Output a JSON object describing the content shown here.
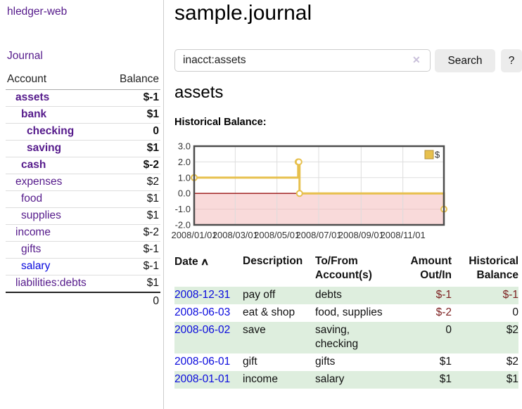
{
  "app": {
    "brand": "hledger-web"
  },
  "sidebar": {
    "journal_label": "Journal",
    "accounts": {
      "header": {
        "account": "Account",
        "balance": "Balance"
      },
      "rows": [
        {
          "name": "assets",
          "balance": "$-1",
          "indent": 0,
          "bold": true,
          "balance_class": "neg",
          "link_class": "purple"
        },
        {
          "name": "bank",
          "balance": "$1",
          "indent": 1,
          "bold": true,
          "balance_class": "",
          "link_class": "purple"
        },
        {
          "name": "checking",
          "balance": "0",
          "indent": 2,
          "bold": true,
          "balance_class": "",
          "link_class": "purple"
        },
        {
          "name": "saving",
          "balance": "$1",
          "indent": 2,
          "bold": true,
          "balance_class": "",
          "link_class": "purple"
        },
        {
          "name": "cash",
          "balance": "$-2",
          "indent": 1,
          "bold": true,
          "balance_class": "neg",
          "link_class": "purple"
        },
        {
          "name": "expenses",
          "balance": "$2",
          "indent": 0,
          "bold": false,
          "balance_class": "",
          "link_class": "purple"
        },
        {
          "name": "food",
          "balance": "$1",
          "indent": 1,
          "bold": false,
          "balance_class": "",
          "link_class": "purple"
        },
        {
          "name": "supplies",
          "balance": "$1",
          "indent": 1,
          "bold": false,
          "balance_class": "",
          "link_class": "purple"
        },
        {
          "name": "income",
          "balance": "$-2",
          "indent": 0,
          "bold": false,
          "balance_class": "neg-soft",
          "link_class": "purple"
        },
        {
          "name": "gifts",
          "balance": "$-1",
          "indent": 1,
          "bold": false,
          "balance_class": "neg-soft",
          "link_class": "purple"
        },
        {
          "name": "salary",
          "balance": "$-1",
          "indent": 1,
          "bold": false,
          "balance_class": "neg-soft",
          "link_class": "blue"
        },
        {
          "name": "liabilities:debts",
          "balance": "$1",
          "indent": 0,
          "bold": false,
          "balance_class": "",
          "link_class": "purple"
        }
      ],
      "total": "0"
    }
  },
  "main": {
    "title": "sample.journal",
    "search": {
      "value": "inacct:assets",
      "clear_icon": "✕",
      "search_label": "Search",
      "help_label": "?"
    },
    "account_heading": "assets",
    "chart_title": "Historical Balance:"
  },
  "chart_data": {
    "type": "line",
    "step": true,
    "title": "Historical Balance",
    "legend": [
      {
        "label": "$",
        "color": "#e7c04d"
      }
    ],
    "ylim": [
      -2,
      3
    ],
    "yticks": [
      "3.0",
      "2.0",
      "1.0",
      "0.0",
      "-1.0",
      "-2.0"
    ],
    "x_span_days": 365,
    "xticks": [
      {
        "d": 0,
        "label": "2008/01/01"
      },
      {
        "d": 60,
        "label": "2008/03/01"
      },
      {
        "d": 121,
        "label": "2008/05/01"
      },
      {
        "d": 182,
        "label": "2008/07/01"
      },
      {
        "d": 244,
        "label": "2008/09/01"
      },
      {
        "d": 305,
        "label": "2008/11/01"
      }
    ],
    "points": [
      {
        "date": "2008-01-01",
        "d": 0,
        "value": 1
      },
      {
        "date": "2008-06-01",
        "d": 152,
        "value": 2
      },
      {
        "date": "2008-06-02",
        "d": 153,
        "value": 2
      },
      {
        "date": "2008-06-03",
        "d": 154,
        "value": 0
      },
      {
        "date": "2008-12-31",
        "d": 365,
        "value": -1
      }
    ],
    "colors": {
      "line": "#e7c04d",
      "marker_fill": "#ffffff",
      "negative_fill": "#f9dada",
      "zero_line": "#991111",
      "grid": "#dddddd",
      "grid_negative": "#eac9c9",
      "border": "#4d4d4d",
      "legend_square_border": "#b3913a"
    }
  },
  "register": {
    "headers": {
      "date": "Date",
      "sort_icon": "∧",
      "description": "Description",
      "accounts": "To/From\nAccount(s)",
      "amount": "Amount\nOut/In",
      "balance": "Historical\nBalance"
    },
    "rows": [
      {
        "date": "2008-12-31",
        "description": "pay off",
        "accounts": "debts",
        "amount": "$-1",
        "amount_class": "neg",
        "balance": "$-1",
        "balance_class": "neg",
        "highlight": true
      },
      {
        "date": "2008-06-03",
        "description": "eat & shop",
        "accounts": "food, supplies",
        "amount": "$-2",
        "amount_class": "neg",
        "balance": "0",
        "balance_class": "",
        "highlight": false
      },
      {
        "date": "2008-06-02",
        "description": "save",
        "accounts": "saving,\nchecking",
        "amount": "0",
        "amount_class": "",
        "balance": "$2",
        "balance_class": "",
        "highlight": true
      },
      {
        "date": "2008-06-01",
        "description": "gift",
        "accounts": "gifts",
        "amount": "$1",
        "amount_class": "",
        "balance": "$2",
        "balance_class": "",
        "highlight": false
      },
      {
        "date": "2008-01-01",
        "description": "income",
        "accounts": "salary",
        "amount": "$1",
        "amount_class": "",
        "balance": "$1",
        "balance_class": "",
        "highlight": true
      }
    ]
  }
}
